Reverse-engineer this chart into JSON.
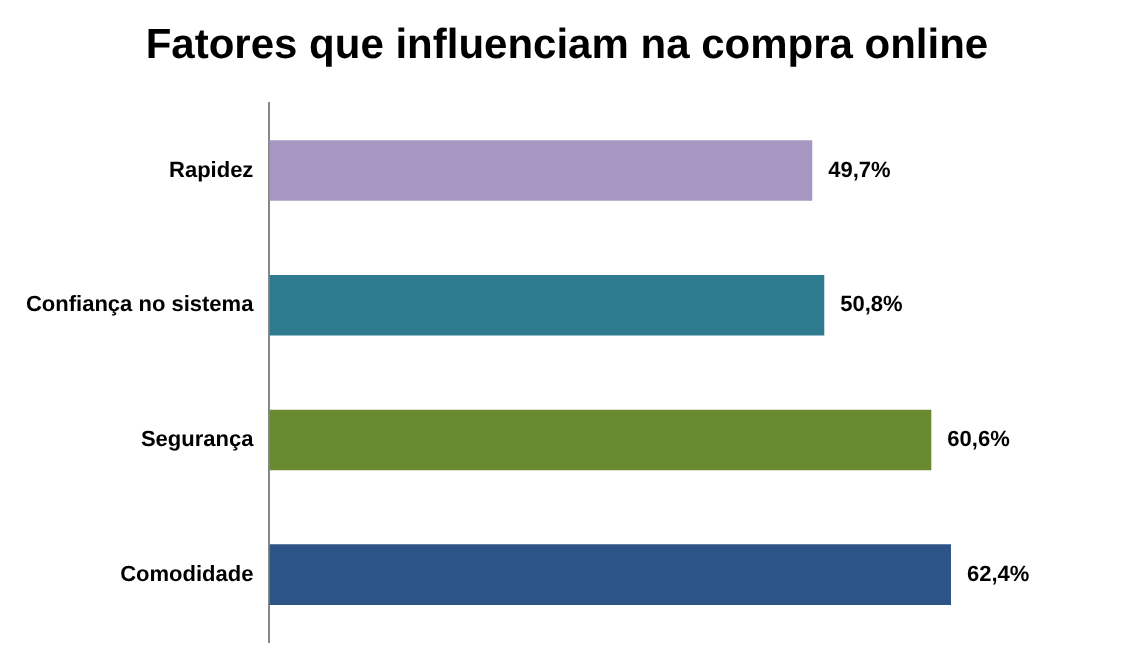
{
  "chart_data": {
    "type": "bar",
    "title": "Fatores que influenciam na compra online",
    "orientation": "horizontal",
    "categories": [
      "Rapidez",
      "Confiança no sistema",
      "Segurança",
      "Comodidade"
    ],
    "values": [
      49.7,
      50.8,
      60.6,
      62.4
    ],
    "colors": [
      "#a897c3",
      "#2e7a8f",
      "#6a8a32",
      "#2c5487"
    ],
    "value_labels": [
      "49,7%",
      "50,8%",
      "60,6%",
      "62,4%"
    ],
    "tick_labels": "y",
    "grid": false,
    "legend": false
  }
}
